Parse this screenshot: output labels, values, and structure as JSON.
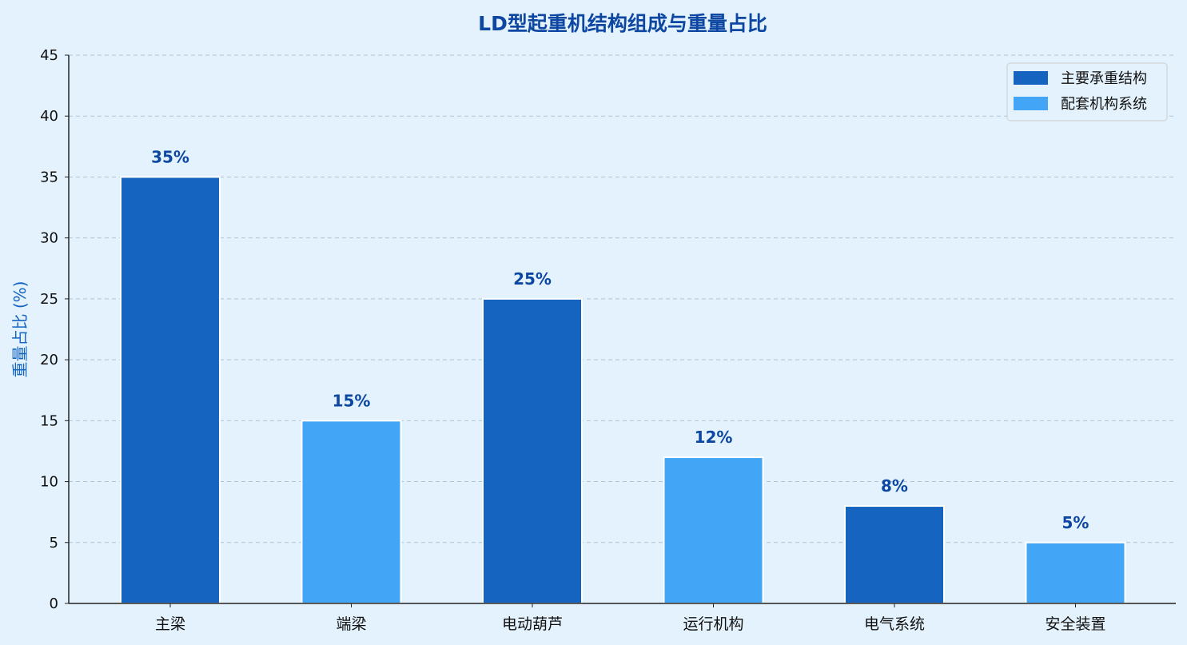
{
  "chart_data": {
    "type": "bar",
    "title": "LD型起重机结构组成与重量占比",
    "xlabel": "",
    "ylabel": "重量占比 (%)",
    "ylim": [
      0,
      45
    ],
    "yticks": [
      0,
      5,
      10,
      15,
      20,
      25,
      30,
      35,
      40,
      45
    ],
    "grid": "horizontal dashed",
    "legend_position": "top-right",
    "categories": [
      "主梁",
      "端梁",
      "电动葫芦",
      "运行机构",
      "电气系统",
      "安全装置"
    ],
    "values": [
      35,
      15,
      25,
      12,
      8,
      5
    ],
    "data_labels": [
      "35%",
      "15%",
      "25%",
      "12%",
      "8%",
      "5%"
    ],
    "bar_groups": [
      "main",
      "aux",
      "main",
      "aux",
      "main",
      "aux"
    ],
    "series": [
      {
        "key": "main",
        "name": "主要承重结构",
        "color": "#1565c0"
      },
      {
        "key": "aux",
        "name": "配套机构系统",
        "color": "#42a5f5"
      }
    ]
  },
  "colors": {
    "background": "#e3f2fd",
    "title": "#0d47a1",
    "data_label": "#0d47a1",
    "ylabel": "#1565c0",
    "grid": "#b0c4d4",
    "axis": "#222222",
    "bar_edge": "#ffffff"
  }
}
